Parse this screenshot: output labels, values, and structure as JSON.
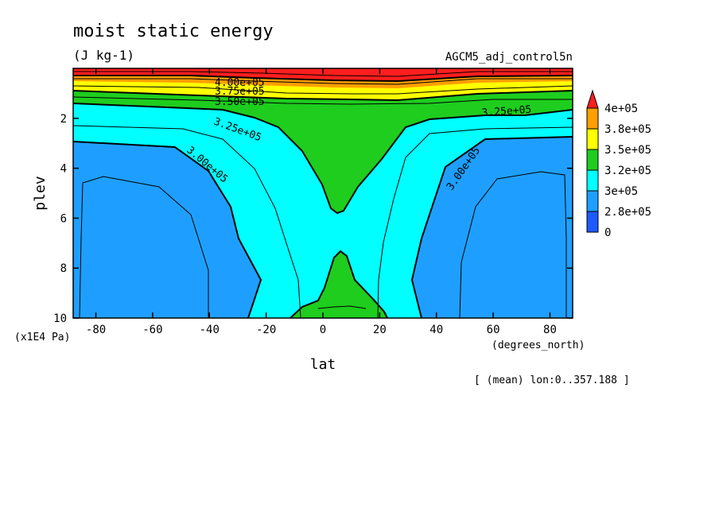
{
  "chart_data": {
    "type": "heatmap",
    "subtype": "filled-contour",
    "title": "moist static energy",
    "units": "(J kg-1)",
    "dataset": "AGCM5_adj_control5n",
    "xlabel": "lat",
    "xunits": "(degrees_north)",
    "ylabel": "plev",
    "yunits": "(x1E4 Pa)",
    "averaging_note": "[ (mean) lon:0..357.188 ]",
    "xlim": [
      -88,
      88
    ],
    "ylim": [
      10,
      0
    ],
    "y_inverted": true,
    "xticks": [
      -80,
      -60,
      -40,
      -20,
      0,
      20,
      40,
      60,
      80
    ],
    "yticks": [
      2,
      4,
      6,
      8,
      10
    ],
    "levels": [
      0,
      280000,
      300000,
      320000,
      350000,
      380000,
      400000
    ],
    "colorbar": {
      "labels": [
        "4e+05",
        "3.8e+05",
        "3.5e+05",
        "3.2e+05",
        "3e+05",
        "2.8e+05",
        "0"
      ],
      "colors": [
        "#ff1e1e",
        "#ff9f00",
        "#ffff00",
        "#1ecd1e",
        "#00ffff",
        "#1e9fff",
        "#1e5aff"
      ]
    },
    "contour_labels": [
      "4.00e+05",
      "3.75e+05",
      "3.50e+05",
      "3.25e+05",
      "3.25e+05",
      "3.00e+05",
      "3.00e+05"
    ],
    "regions": [
      {
        "band": "3.5e+05-4e+05",
        "description": "upper levels 0-1.5 across all latitudes"
      },
      {
        "band": "3.2e+05-3.5e+05",
        "description": "tropical column 1.5-5.8 between about -20 and 30, plus near-surface pocket 7.4-10 around 5"
      },
      {
        "band": "3e+05-3.2e+05",
        "description": "between the 3.00e+05 and 3.25e+05 contours"
      },
      {
        "band": "2.8e+05-3e+05",
        "description": "extratropical lower troposphere poleward of about 30 degrees"
      }
    ]
  }
}
